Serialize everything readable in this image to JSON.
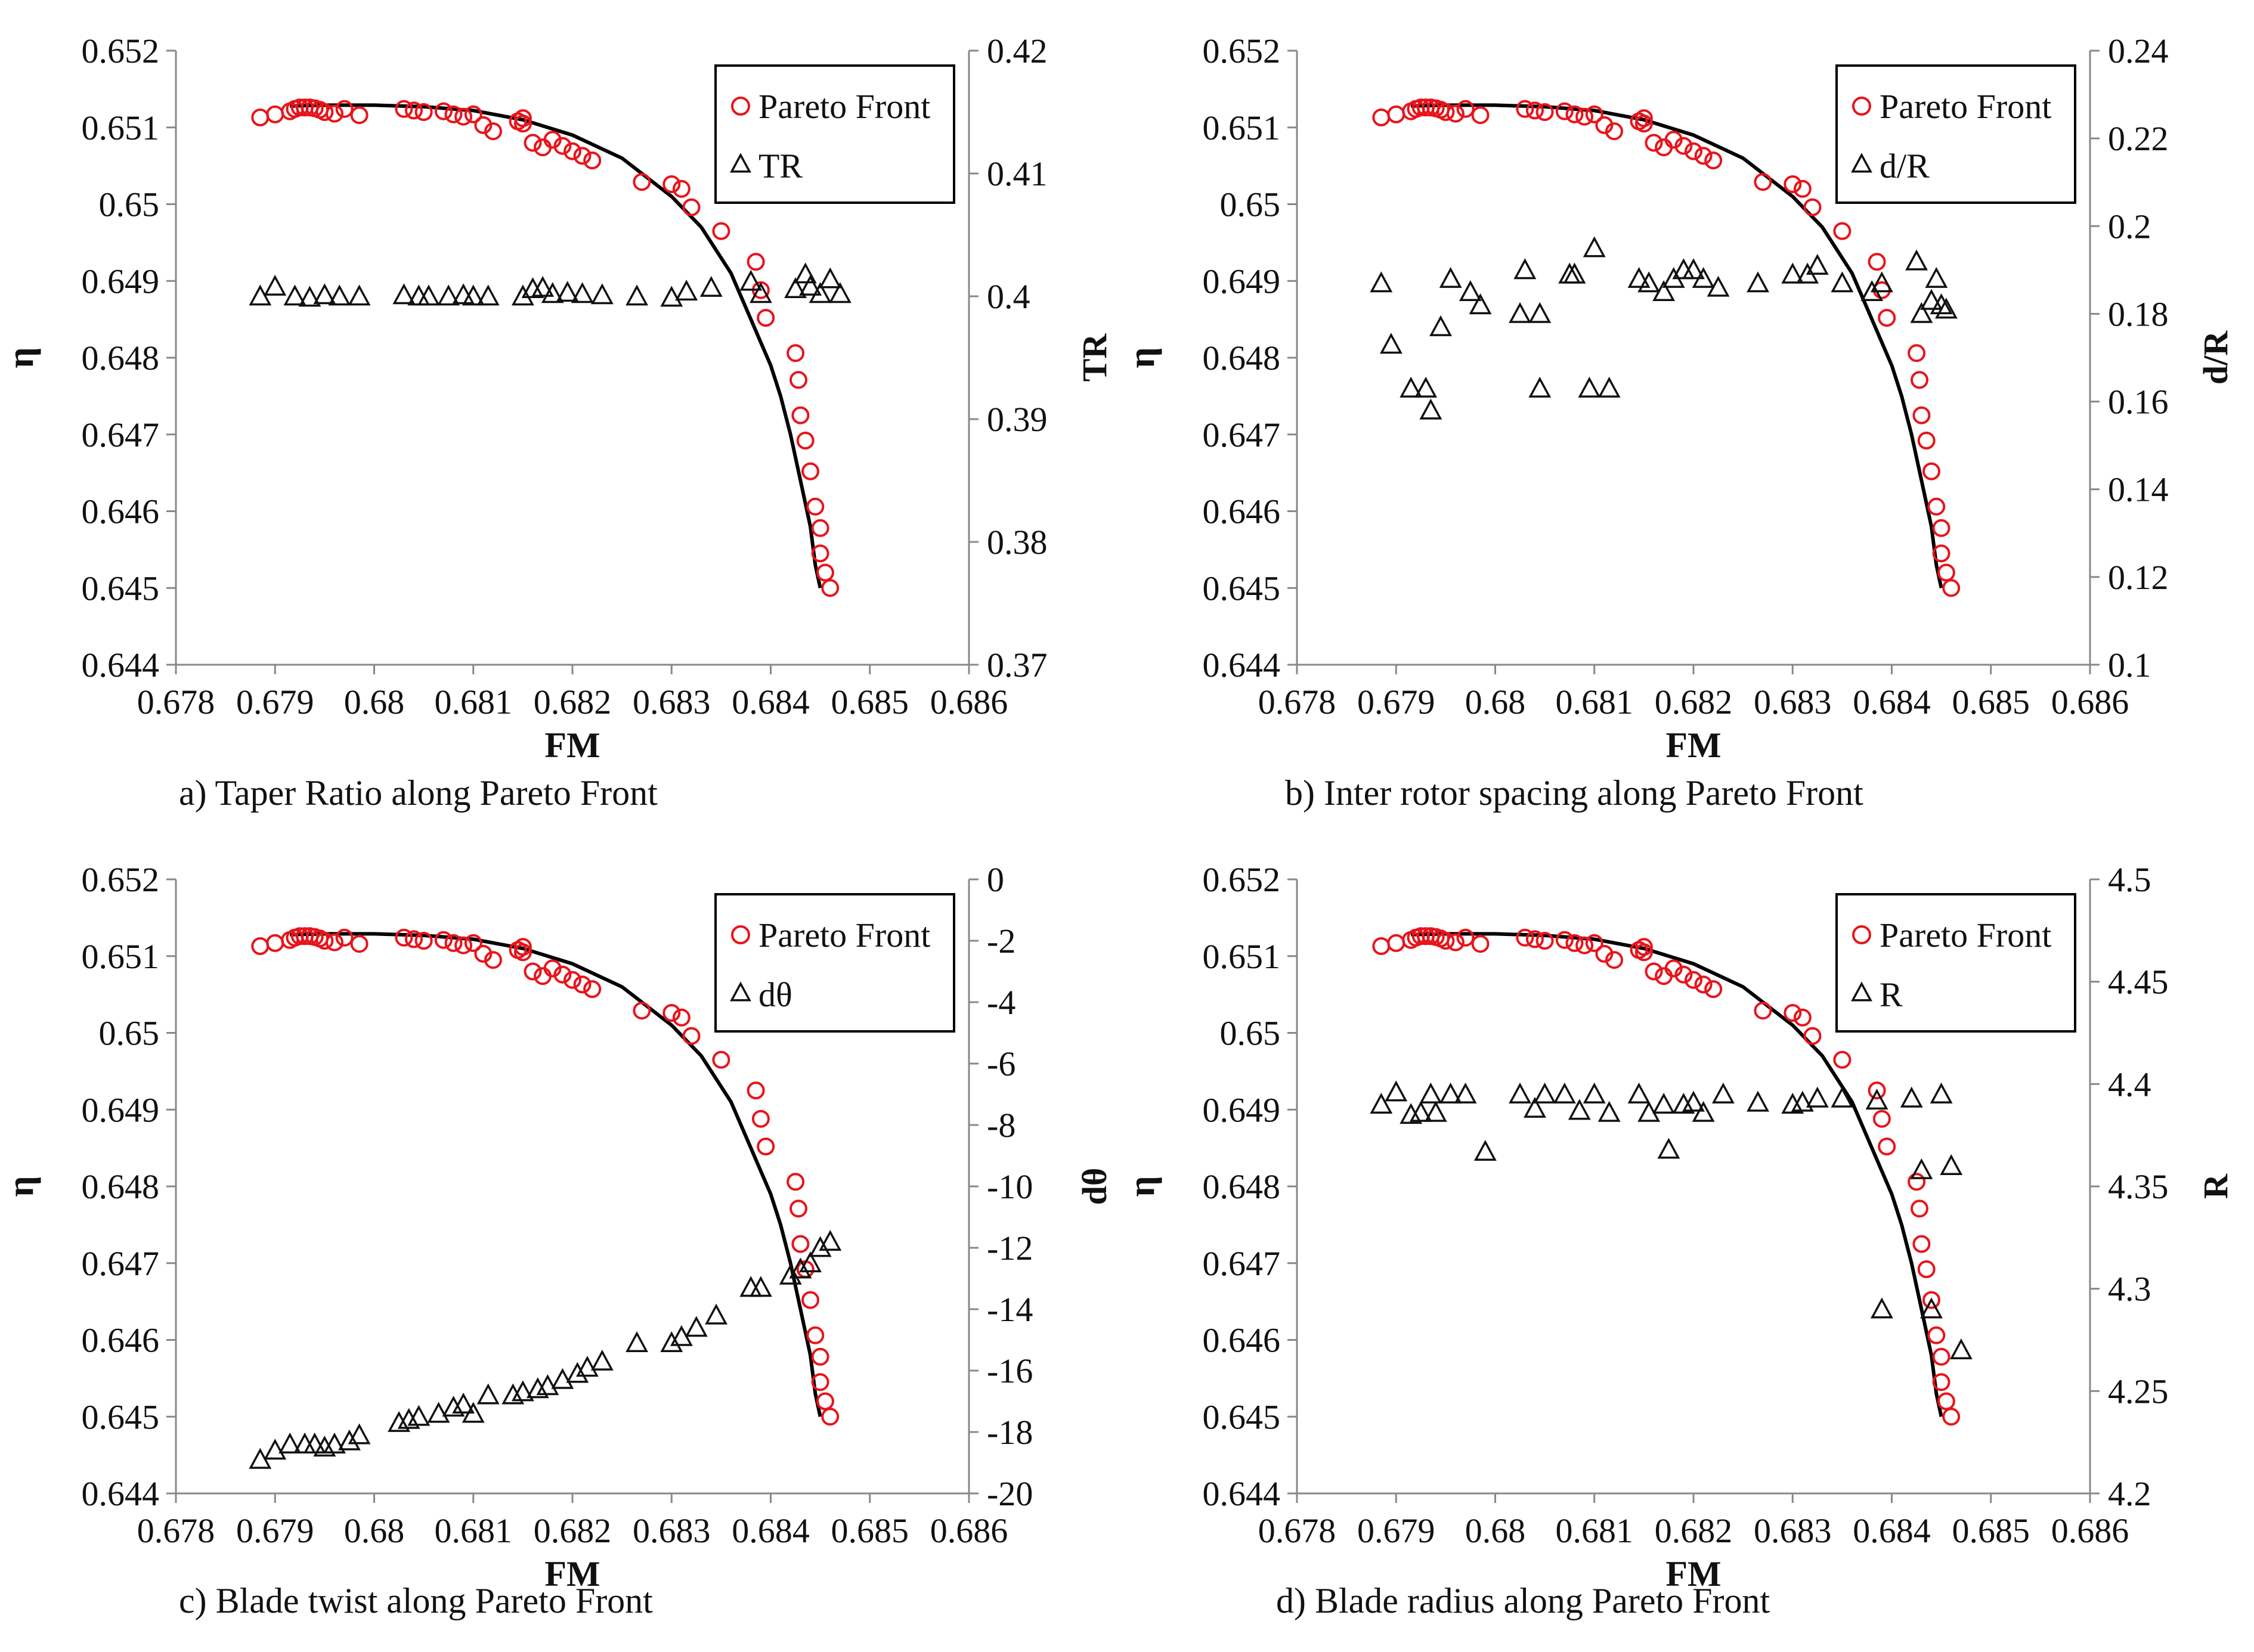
{
  "figure": {
    "colors": {
      "pareto": "#e8141b",
      "param": "#111111",
      "fit": "#000000",
      "axis": "#888888"
    },
    "common": {
      "xlabel": "FM",
      "ylabel": "η",
      "xlim": [
        0.678,
        0.686
      ],
      "xticks": [
        0.678,
        0.679,
        0.68,
        0.681,
        0.682,
        0.683,
        0.684,
        0.685,
        0.686
      ],
      "xtick_labels": [
        "0.678",
        "0.679",
        "0.68",
        "0.681",
        "0.682",
        "0.683",
        "0.684",
        "0.685",
        "0.686"
      ],
      "ylim": [
        0.644,
        0.652
      ],
      "yticks": [
        0.644,
        0.645,
        0.646,
        0.647,
        0.648,
        0.649,
        0.65,
        0.651,
        0.652
      ],
      "ytick_labels": [
        "0.644",
        "0.645",
        "0.646",
        "0.647",
        "0.648",
        "0.649",
        "0.65",
        "0.651",
        "0.652"
      ],
      "pareto_legend": "Pareto Front",
      "pareto_x": [
        0.67885,
        0.679,
        0.67915,
        0.6792,
        0.67925,
        0.6793,
        0.67935,
        0.6794,
        0.67945,
        0.6795,
        0.6796,
        0.6797,
        0.67985,
        0.6803,
        0.6804,
        0.6805,
        0.6807,
        0.6808,
        0.6809,
        0.681,
        0.6811,
        0.6812,
        0.68145,
        0.6815,
        0.6815,
        0.6816,
        0.6817,
        0.6818,
        0.6819,
        0.682,
        0.6821,
        0.6822,
        0.6827,
        0.683,
        0.6831,
        0.6832,
        0.6835,
        0.68385,
        0.6839,
        0.68395,
        0.68425,
        0.68428,
        0.6843,
        0.68435,
        0.6844,
        0.68445,
        0.6845,
        0.6845,
        0.68455,
        0.6846
      ],
      "pareto_y": [
        0.65113,
        0.65117,
        0.65121,
        0.65124,
        0.65126,
        0.65126,
        0.65126,
        0.65125,
        0.65123,
        0.6512,
        0.65118,
        0.65124,
        0.65116,
        0.65124,
        0.65122,
        0.6512,
        0.65121,
        0.65117,
        0.65114,
        0.65117,
        0.65103,
        0.65095,
        0.65108,
        0.65112,
        0.65105,
        0.6508,
        0.65074,
        0.65084,
        0.65076,
        0.65069,
        0.65063,
        0.65057,
        0.65029,
        0.65026,
        0.6502,
        0.64996,
        0.64965,
        0.64925,
        0.64888,
        0.64852,
        0.64806,
        0.64771,
        0.64725,
        0.64692,
        0.64652,
        0.64606,
        0.64578,
        0.64545,
        0.6452,
        0.645
      ],
      "fit_x": [
        0.67915,
        0.6795,
        0.68,
        0.6805,
        0.681,
        0.6815,
        0.682,
        0.6825,
        0.683,
        0.6833,
        0.6836,
        0.6838,
        0.684,
        0.6841,
        0.6842,
        0.6843,
        0.6844,
        0.68445,
        0.6845
      ],
      "fit_y": [
        0.65128,
        0.65129,
        0.65129,
        0.65127,
        0.65122,
        0.6511,
        0.6509,
        0.6506,
        0.6501,
        0.6497,
        0.6491,
        0.6485,
        0.6479,
        0.6475,
        0.647,
        0.6464,
        0.6458,
        0.6453,
        0.645
      ]
    },
    "panels": [
      {
        "caption": "a)  Taper Ratio along Pareto Front",
        "y2label": "TR",
        "legend_param": "TR",
        "y2lim": [
          0.37,
          0.42
        ],
        "y2ticks": [
          0.37,
          0.38,
          0.39,
          0.4,
          0.41,
          0.42
        ],
        "y2tick_labels": [
          "0.37",
          "0.38",
          "0.39",
          "0.4",
          "0.41",
          "0.42"
        ],
        "param_x": [
          0.67885,
          0.679,
          0.6792,
          0.67935,
          0.6795,
          0.67965,
          0.67985,
          0.6803,
          0.68045,
          0.68055,
          0.68075,
          0.6809,
          0.681,
          0.68115,
          0.6815,
          0.6816,
          0.6817,
          0.6818,
          0.68195,
          0.6821,
          0.6823,
          0.68265,
          0.683,
          0.68315,
          0.6834,
          0.6838,
          0.6839,
          0.68425,
          0.68435,
          0.6844,
          0.6845,
          0.6846,
          0.6847
        ],
        "param_y": [
          0.4,
          0.4008,
          0.4,
          0.3999,
          0.4001,
          0.4,
          0.4,
          0.4001,
          0.4,
          0.4,
          0.4,
          0.4001,
          0.4,
          0.4,
          0.4,
          0.4006,
          0.4007,
          0.4002,
          0.4003,
          0.4002,
          0.4001,
          0.4,
          0.3999,
          0.4004,
          0.4007,
          0.4012,
          0.4002,
          0.4006,
          0.4018,
          0.4008,
          0.4002,
          0.4014,
          0.4002
        ]
      },
      {
        "caption": "b)  Inter rotor spacing along Pareto Front",
        "y2label": "d/R",
        "legend_param": "d/R",
        "y2lim": [
          0.1,
          0.24
        ],
        "y2ticks": [
          0.1,
          0.12,
          0.14,
          0.16,
          0.18,
          0.2,
          0.22,
          0.24
        ],
        "y2tick_labels": [
          "0.1",
          "0.12",
          "0.14",
          "0.16",
          "0.18",
          "0.2",
          "0.22",
          "0.24"
        ],
        "param_x": [
          0.67885,
          0.67895,
          0.67915,
          0.6793,
          0.67935,
          0.67945,
          0.67955,
          0.67975,
          0.67985,
          0.68025,
          0.6803,
          0.68045,
          0.68045,
          0.68075,
          0.6808,
          0.68095,
          0.681,
          0.68115,
          0.68145,
          0.68155,
          0.6817,
          0.6818,
          0.6819,
          0.682,
          0.6821,
          0.68225,
          0.68265,
          0.683,
          0.68315,
          0.68325,
          0.6835,
          0.6838,
          0.6839,
          0.68425,
          0.6843,
          0.6844,
          0.68445,
          0.6845,
          0.68455
        ],
        "param_y": [
          0.187,
          0.173,
          0.163,
          0.163,
          0.158,
          0.177,
          0.188,
          0.185,
          0.182,
          0.18,
          0.19,
          0.18,
          0.163,
          0.189,
          0.189,
          0.163,
          0.195,
          0.163,
          0.188,
          0.187,
          0.185,
          0.188,
          0.19,
          0.19,
          0.188,
          0.186,
          0.187,
          0.189,
          0.189,
          0.191,
          0.187,
          0.185,
          0.187,
          0.192,
          0.18,
          0.183,
          0.188,
          0.182,
          0.181
        ]
      },
      {
        "caption": "c)  Blade twist along Pareto Front",
        "y2label": "dθ",
        "legend_param": "dθ",
        "y2lim": [
          -20,
          0
        ],
        "y2ticks": [
          -20,
          -18,
          -16,
          -14,
          -12,
          -10,
          -8,
          -6,
          -4,
          -2,
          0
        ],
        "y2tick_labels": [
          "-20",
          "-18",
          "-16",
          "-14",
          "-12",
          "-10",
          "-8",
          "-6",
          "-4",
          "-2",
          "0"
        ],
        "param_x": [
          0.67885,
          0.679,
          0.67915,
          0.6793,
          0.6794,
          0.6795,
          0.6796,
          0.67975,
          0.67985,
          0.68025,
          0.68035,
          0.68045,
          0.68065,
          0.6808,
          0.6809,
          0.681,
          0.68115,
          0.6814,
          0.6815,
          0.68165,
          0.68175,
          0.6819,
          0.68205,
          0.68215,
          0.6823,
          0.68265,
          0.683,
          0.6831,
          0.68325,
          0.68345,
          0.6838,
          0.6839,
          0.6842,
          0.6843,
          0.6844,
          0.6845,
          0.6846
        ],
        "param_y": [
          -18.9,
          -18.6,
          -18.4,
          -18.4,
          -18.4,
          -18.5,
          -18.4,
          -18.3,
          -18.1,
          -17.7,
          -17.6,
          -17.5,
          -17.4,
          -17.2,
          -17.1,
          -17.4,
          -16.8,
          -16.8,
          -16.7,
          -16.6,
          -16.5,
          -16.3,
          -16.1,
          -15.9,
          -15.7,
          -15.1,
          -15.1,
          -14.9,
          -14.6,
          -14.2,
          -13.3,
          -13.3,
          -12.9,
          -12.7,
          -12.5,
          -12.0,
          -11.8
        ]
      },
      {
        "caption": "d)  Blade radius along Pareto Front",
        "y2label": "R",
        "legend_param": "R",
        "y2lim": [
          4.2,
          4.5
        ],
        "y2ticks": [
          4.2,
          4.25,
          4.3,
          4.35,
          4.4,
          4.45,
          4.5
        ],
        "y2tick_labels": [
          "4.2",
          "4.25",
          "4.3",
          "4.35",
          "4.4",
          "4.45",
          "4.5"
        ],
        "param_x": [
          0.67885,
          0.679,
          0.67915,
          0.67925,
          0.67935,
          0.6794,
          0.67955,
          0.6797,
          0.6799,
          0.68025,
          0.6804,
          0.6805,
          0.6807,
          0.68085,
          0.681,
          0.68115,
          0.68145,
          0.68155,
          0.6817,
          0.68175,
          0.6819,
          0.682,
          0.6821,
          0.6823,
          0.68265,
          0.683,
          0.6831,
          0.68325,
          0.6835,
          0.68385,
          0.6839,
          0.6842,
          0.6843,
          0.6844,
          0.6845,
          0.6846,
          0.6847
        ],
        "param_y": [
          4.39,
          4.396,
          4.385,
          4.386,
          4.395,
          4.386,
          4.395,
          4.395,
          4.367,
          4.395,
          4.388,
          4.395,
          4.395,
          4.387,
          4.395,
          4.386,
          4.395,
          4.386,
          4.39,
          4.368,
          4.39,
          4.391,
          4.386,
          4.395,
          4.391,
          4.39,
          4.391,
          4.393,
          4.393,
          4.392,
          4.29,
          4.393,
          4.358,
          4.29,
          4.395,
          4.36,
          4.27
        ]
      }
    ]
  }
}
